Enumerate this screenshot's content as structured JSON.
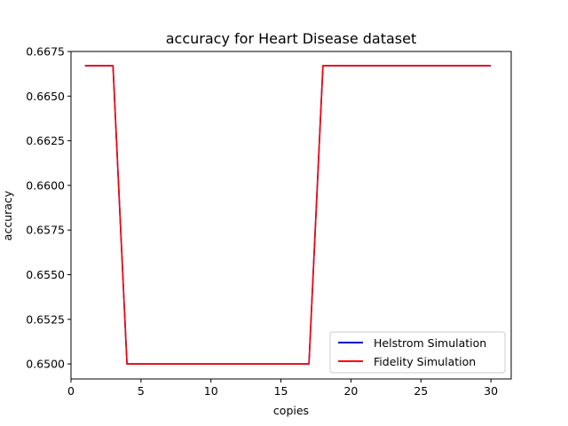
{
  "chart_data": {
    "type": "line",
    "title": "accuracy for Heart Disease dataset",
    "xlabel": "copies",
    "ylabel": "accuracy",
    "xlim": [
      0.0,
      31.45
    ],
    "ylim": [
      0.64916,
      0.6675
    ],
    "xticks": [
      0,
      5,
      10,
      15,
      20,
      25,
      30
    ],
    "yticks": [
      0.65,
      0.6525,
      0.655,
      0.6575,
      0.66,
      0.6625,
      0.665,
      0.6675
    ],
    "xtick_labels": [
      "0",
      "5",
      "10",
      "15",
      "20",
      "25",
      "30"
    ],
    "ytick_labels": [
      "0.6500",
      "0.6525",
      "0.6550",
      "0.6575",
      "0.6600",
      "0.6625",
      "0.6650",
      "0.6675"
    ],
    "grid": false,
    "legend_position": "lower-right",
    "x": [
      1,
      2,
      3,
      4,
      5,
      6,
      7,
      8,
      9,
      10,
      11,
      12,
      13,
      14,
      15,
      16,
      17,
      18,
      19,
      20,
      21,
      22,
      23,
      24,
      25,
      26,
      27,
      28,
      29,
      30
    ],
    "series": [
      {
        "name": "Helstrom Simulation",
        "color": "#0000cc",
        "values": [
          0.6667,
          0.6667,
          0.6667,
          0.65,
          0.65,
          0.65,
          0.65,
          0.65,
          0.65,
          0.65,
          0.65,
          0.65,
          0.65,
          0.65,
          0.65,
          0.65,
          0.65,
          0.6667,
          0.6667,
          0.6667,
          0.6667,
          0.6667,
          0.6667,
          0.6667,
          0.6667,
          0.6667,
          0.6667,
          0.6667,
          0.6667,
          0.6667
        ]
      },
      {
        "name": "Fidelity Simulation",
        "color": "#ff0000",
        "values": [
          0.6667,
          0.6667,
          0.6667,
          0.65,
          0.65,
          0.65,
          0.65,
          0.65,
          0.65,
          0.65,
          0.65,
          0.65,
          0.65,
          0.65,
          0.65,
          0.65,
          0.65,
          0.6667,
          0.6667,
          0.6667,
          0.6667,
          0.6667,
          0.6667,
          0.6667,
          0.6667,
          0.6667,
          0.6667,
          0.6667,
          0.6667,
          0.6667
        ]
      }
    ]
  }
}
